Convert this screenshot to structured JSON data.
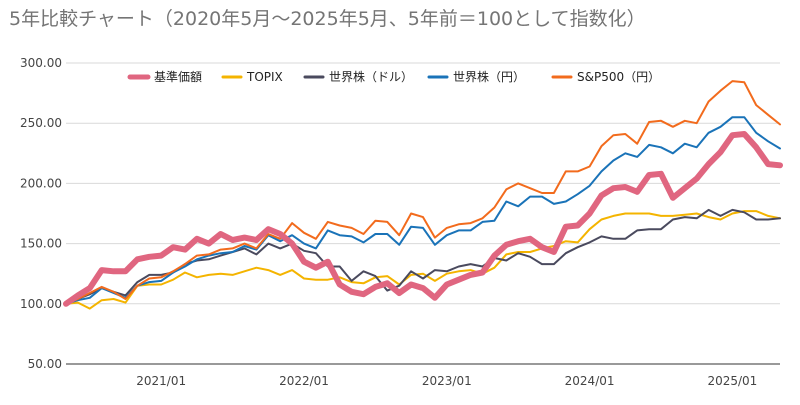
{
  "chart_data": {
    "type": "line",
    "title": "5年比較チャート（2020年5月〜2025年5月、5年前＝100として指数化）",
    "xlabel": "",
    "ylabel": "",
    "ylim": [
      50,
      300
    ],
    "yticks": [
      "50.00",
      "100.00",
      "150.00",
      "200.00",
      "250.00",
      "300.00"
    ],
    "xtick_labels": [
      "2021/01",
      "2022/01",
      "2023/01",
      "2024/01",
      "2025/01"
    ],
    "x_start": "2020/05",
    "x_end": "2025/05",
    "legend_position": "top",
    "grid": true,
    "series": [
      {
        "name": "基準価額",
        "color": "#e06680",
        "values": [
          100,
          107,
          113,
          128,
          127,
          127,
          137,
          139,
          140,
          147,
          145,
          154,
          150,
          158,
          153,
          155,
          153,
          162,
          158,
          150,
          135,
          130,
          135,
          116,
          110,
          108,
          114,
          117,
          109,
          116,
          113,
          105,
          116,
          120,
          124,
          126,
          140,
          149,
          152,
          154,
          147,
          143,
          164,
          165,
          175,
          190,
          196,
          197,
          193,
          207,
          208,
          188,
          196,
          204,
          216,
          226,
          240,
          241,
          230,
          216,
          215
        ]
      },
      {
        "name": "TOPIX",
        "color": "#f4b400",
        "values": [
          100,
          101,
          96,
          103,
          104,
          101,
          115,
          116,
          116,
          120,
          126,
          122,
          124,
          125,
          124,
          127,
          130,
          128,
          124,
          128,
          121,
          120,
          120,
          122,
          118,
          117,
          122,
          123,
          116,
          124,
          125,
          119,
          125,
          127,
          128,
          125,
          130,
          141,
          143,
          143,
          146,
          148,
          152,
          151,
          162,
          170,
          173,
          175,
          175,
          175,
          173,
          173,
          174,
          175,
          172,
          170,
          175,
          177,
          177,
          173,
          171
        ]
      },
      {
        "name": "世界株（ドル）",
        "color": "#4a4a5e",
        "values": [
          100,
          104,
          108,
          113,
          110,
          107,
          118,
          124,
          124,
          126,
          133,
          136,
          137,
          140,
          143,
          146,
          141,
          150,
          146,
          150,
          144,
          142,
          131,
          131,
          119,
          127,
          123,
          111,
          115,
          127,
          121,
          128,
          127,
          131,
          133,
          131,
          138,
          136,
          142,
          139,
          133,
          133,
          142,
          147,
          151,
          156,
          154,
          154,
          161,
          162,
          162,
          170,
          172,
          171,
          178,
          173,
          178,
          176,
          170,
          170,
          171
        ]
      },
      {
        "name": "世界株（円）",
        "color": "#1a73b8",
        "values": [
          100,
          103,
          105,
          113,
          109,
          105,
          115,
          118,
          119,
          126,
          131,
          137,
          140,
          142,
          143,
          148,
          145,
          157,
          152,
          157,
          150,
          146,
          161,
          157,
          156,
          151,
          158,
          158,
          149,
          164,
          163,
          149,
          157,
          161,
          161,
          168,
          169,
          185,
          181,
          189,
          189,
          183,
          185,
          191,
          198,
          210,
          219,
          225,
          222,
          232,
          230,
          225,
          233,
          230,
          242,
          247,
          255,
          255,
          242,
          235,
          229
        ]
      },
      {
        "name": "S&P500（円）",
        "color": "#f26b1d",
        "values": [
          100,
          104,
          109,
          114,
          110,
          104,
          115,
          121,
          122,
          127,
          133,
          140,
          141,
          145,
          146,
          150,
          146,
          158,
          154,
          167,
          159,
          154,
          168,
          165,
          163,
          158,
          169,
          168,
          157,
          175,
          172,
          155,
          163,
          166,
          167,
          171,
          180,
          195,
          200,
          196,
          192,
          192,
          210,
          210,
          214,
          231,
          240,
          241,
          233,
          251,
          252,
          247,
          252,
          250,
          268,
          277,
          285,
          284,
          265,
          257,
          249
        ]
      }
    ]
  }
}
